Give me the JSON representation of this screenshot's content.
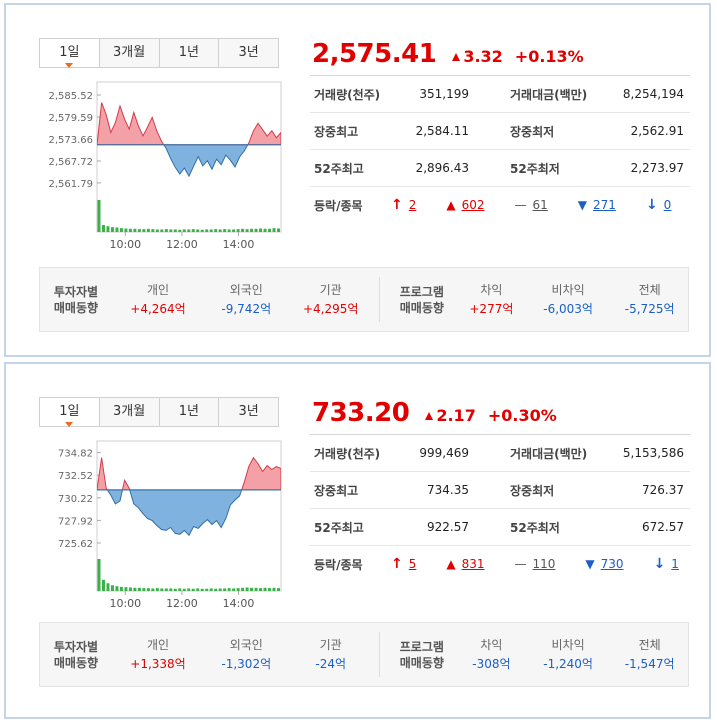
{
  "panels": [
    {
      "tabs": [
        "1일",
        "3개월",
        "1년",
        "3년"
      ],
      "price": "2,575.41",
      "change": "3.32",
      "change_pct": "+0.13%",
      "stats": [
        {
          "label_a": "거래량(천주)",
          "value_a": "351,199",
          "label_b": "거래대금(백만)",
          "value_b": "8,254,194"
        },
        {
          "label_a": "장중최고",
          "value_a": "2,584.11",
          "label_b": "장중최저",
          "value_b": "2,562.91"
        },
        {
          "label_a": "52주최고",
          "value_a": "2,896.43",
          "label_b": "52주최저",
          "value_b": "2,273.97"
        }
      ],
      "updown": {
        "label": "등락/종목",
        "upper_limit": "2",
        "up": "602",
        "flat": "61",
        "down": "271",
        "lower_limit": "0"
      },
      "flow": {
        "investor_header": [
          "투자자별",
          "매매동향"
        ],
        "program_header": [
          "프로그램",
          "매매동향"
        ],
        "investors": [
          {
            "label": "개인",
            "value": "+4,264억",
            "color": "#e00000"
          },
          {
            "label": "외국인",
            "value": "-9,742억",
            "color": "#1a5fc8"
          },
          {
            "label": "기관",
            "value": "+4,295억",
            "color": "#e00000"
          }
        ],
        "program": [
          {
            "label": "차익",
            "value": "+277억",
            "color": "#e00000"
          },
          {
            "label": "비차익",
            "value": "-6,003억",
            "color": "#1a5fc8"
          },
          {
            "label": "전체",
            "value": "-5,725억",
            "color": "#1a5fc8"
          }
        ]
      },
      "chart_data": {
        "type": "area",
        "y_ticks": [
          "2,585.52",
          "2,579.59",
          "2,573.66",
          "2,567.72",
          "2,561.79"
        ],
        "ylim": [
          2558.8,
          2588.5
        ],
        "baseline": 2572.09,
        "x_ticks": [
          "10:00",
          "12:00",
          "14:00"
        ],
        "x_tick_minutes": [
          60,
          180,
          300
        ],
        "x_range_minutes": [
          0,
          390
        ],
        "values": [
          2572.09,
          2583.5,
          2580.2,
          2575.4,
          2578.1,
          2582.6,
          2579.0,
          2576.3,
          2580.8,
          2577.2,
          2574.5,
          2576.9,
          2579.5,
          2575.8,
          2573.1,
          2571.2,
          2568.4,
          2566.0,
          2564.2,
          2565.8,
          2563.6,
          2566.3,
          2568.9,
          2566.4,
          2567.8,
          2565.5,
          2568.2,
          2566.7,
          2569.3,
          2567.9,
          2566.1,
          2568.8,
          2570.4,
          2572.6,
          2575.8,
          2577.9,
          2576.2,
          2574.4,
          2575.9,
          2574.0,
          2575.41
        ],
        "volume": [
          100,
          22,
          18,
          15,
          14,
          12,
          11,
          10,
          10,
          9,
          9,
          10,
          9,
          8,
          8,
          9,
          8,
          8,
          7,
          8,
          8,
          9,
          8,
          7,
          8,
          8,
          9,
          8,
          9,
          8,
          8,
          9,
          10,
          9,
          10,
          10,
          11,
          10,
          10,
          12,
          11
        ]
      }
    },
    {
      "tabs": [
        "1일",
        "3개월",
        "1년",
        "3년"
      ],
      "price": "733.20",
      "change": "2.17",
      "change_pct": "+0.30%",
      "stats": [
        {
          "label_a": "거래량(천주)",
          "value_a": "999,469",
          "label_b": "거래대금(백만)",
          "value_b": "5,153,586"
        },
        {
          "label_a": "장중최고",
          "value_a": "734.35",
          "label_b": "장중최저",
          "value_b": "726.37"
        },
        {
          "label_a": "52주최고",
          "value_a": "922.57",
          "label_b": "52주최저",
          "value_b": "672.57"
        }
      ],
      "updown": {
        "label": "등락/종목",
        "upper_limit": "5",
        "up": "831",
        "flat": "110",
        "down": "730",
        "lower_limit": "1"
      },
      "flow": {
        "investor_header": [
          "투자자별",
          "매매동향"
        ],
        "program_header": [
          "프로그램",
          "매매동향"
        ],
        "investors": [
          {
            "label": "개인",
            "value": "+1,338억",
            "color": "#e00000"
          },
          {
            "label": "외국인",
            "value": "-1,302억",
            "color": "#1a5fc8"
          },
          {
            "label": "기관",
            "value": "-24억",
            "color": "#1a5fc8"
          }
        ],
        "program": [
          {
            "label": "차익",
            "value": "-308억",
            "color": "#1a5fc8"
          },
          {
            "label": "비차익",
            "value": "-1,240억",
            "color": "#1a5fc8"
          },
          {
            "label": "전체",
            "value": "-1,547억",
            "color": "#1a5fc8"
          }
        ]
      },
      "chart_data": {
        "type": "area",
        "y_ticks": [
          "734.82",
          "732.52",
          "730.22",
          "727.92",
          "725.62"
        ],
        "ylim": [
          724.6,
          735.8
        ],
        "baseline": 731.03,
        "x_ticks": [
          "10:00",
          "12:00",
          "14:00"
        ],
        "x_tick_minutes": [
          60,
          180,
          300
        ],
        "x_range_minutes": [
          0,
          390
        ],
        "values": [
          731.03,
          734.3,
          731.2,
          730.5,
          729.6,
          729.9,
          732.0,
          731.2,
          729.6,
          729.2,
          728.6,
          728.1,
          727.9,
          727.4,
          727.0,
          726.9,
          727.2,
          726.6,
          726.5,
          726.9,
          726.4,
          727.3,
          727.1,
          727.6,
          728.0,
          727.5,
          727.9,
          727.2,
          728.1,
          729.5,
          730.0,
          730.4,
          731.8,
          733.4,
          734.3,
          733.7,
          732.9,
          733.5,
          733.1,
          733.4,
          733.2
        ],
        "volume": [
          100,
          35,
          24,
          18,
          15,
          13,
          12,
          11,
          10,
          10,
          9,
          9,
          8,
          9,
          8,
          8,
          8,
          7,
          8,
          7,
          8,
          7,
          8,
          7,
          7,
          8,
          7,
          8,
          8,
          9,
          8,
          9,
          10,
          11,
          10,
          10,
          9,
          10,
          9,
          10,
          9
        ]
      }
    }
  ]
}
